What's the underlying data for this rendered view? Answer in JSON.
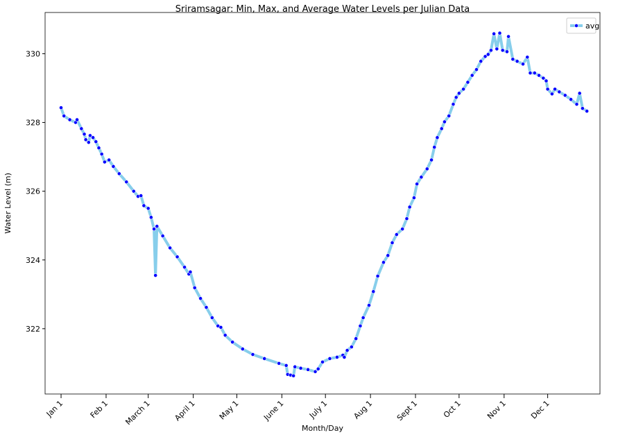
{
  "chart_data": {
    "type": "line",
    "title": "Sriramsagar: Min, Max, and Average Water Levels per Julian Data",
    "x_label": "Month/Day",
    "y_label": "Water Level (m)",
    "x": [
      0,
      2,
      6,
      10,
      11,
      14,
      16,
      17,
      19,
      20,
      22,
      24,
      26,
      28,
      30,
      33,
      36,
      40,
      45,
      50,
      53,
      55,
      57,
      60,
      62,
      64,
      65,
      66,
      70,
      75,
      80,
      85,
      88,
      89,
      92,
      96,
      100,
      104,
      108,
      110,
      113,
      118,
      125,
      132,
      140,
      150,
      155,
      156,
      158,
      160,
      161,
      165,
      170,
      175,
      177,
      180,
      185,
      190,
      194,
      195,
      197,
      200,
      203,
      206,
      208,
      212,
      215,
      218,
      222,
      225,
      228,
      231,
      235,
      238,
      240,
      243,
      245,
      248,
      252,
      255,
      257,
      259,
      262,
      264,
      267,
      270,
      272,
      274,
      277,
      280,
      283,
      286,
      289,
      292,
      294,
      296,
      298,
      300,
      302,
      304,
      307,
      308,
      311,
      314,
      318,
      321,
      323,
      326,
      329,
      332,
      334,
      335,
      338,
      340,
      343,
      347,
      351,
      355,
      357,
      359,
      362
    ],
    "series": [
      {
        "name": "avg",
        "color": "#87ceeb",
        "marker_color": "#0000ff",
        "values": [
          328.43,
          328.19,
          328.08,
          328.0,
          328.08,
          327.82,
          327.66,
          327.5,
          327.42,
          327.62,
          327.56,
          327.44,
          327.26,
          327.08,
          326.85,
          326.91,
          326.72,
          326.51,
          326.27,
          326.0,
          325.85,
          325.87,
          325.58,
          325.5,
          325.24,
          324.9,
          323.55,
          324.98,
          324.7,
          324.35,
          324.09,
          323.79,
          323.59,
          323.65,
          323.19,
          322.88,
          322.62,
          322.32,
          322.08,
          322.04,
          321.81,
          321.61,
          321.41,
          321.25,
          321.13,
          320.99,
          320.93,
          320.67,
          320.65,
          320.63,
          320.89,
          320.85,
          320.81,
          320.75,
          320.83,
          321.03,
          321.13,
          321.17,
          321.23,
          321.17,
          321.37,
          321.47,
          321.71,
          322.08,
          322.32,
          322.68,
          323.08,
          323.53,
          323.93,
          324.13,
          324.5,
          324.74,
          324.9,
          325.2,
          325.54,
          325.81,
          326.21,
          326.41,
          326.65,
          326.91,
          327.28,
          327.56,
          327.82,
          328.02,
          328.19,
          328.53,
          328.73,
          328.85,
          328.97,
          329.17,
          329.37,
          329.54,
          329.78,
          329.92,
          329.98,
          330.1,
          330.58,
          330.14,
          330.6,
          330.1,
          330.06,
          330.5,
          329.84,
          329.78,
          329.7,
          329.9,
          329.44,
          329.44,
          329.37,
          329.29,
          329.21,
          328.97,
          328.83,
          328.97,
          328.89,
          328.79,
          328.67,
          328.53,
          328.85,
          328.41,
          328.33
        ]
      }
    ],
    "xlim": [
      -11,
      371
    ],
    "ylim": [
      320.1,
      331.2
    ],
    "xticks": [
      {
        "value": 0,
        "label": "Jan 1"
      },
      {
        "value": 31,
        "label": "Feb 1"
      },
      {
        "value": 60,
        "label": "March 1"
      },
      {
        "value": 91,
        "label": "April 1"
      },
      {
        "value": 121,
        "label": "May 1"
      },
      {
        "value": 152,
        "label": "June 1"
      },
      {
        "value": 182,
        "label": "July 1"
      },
      {
        "value": 213,
        "label": "Aug 1"
      },
      {
        "value": 244,
        "label": "Sept 1"
      },
      {
        "value": 274,
        "label": "Oct 1"
      },
      {
        "value": 305,
        "label": "Nov 1"
      },
      {
        "value": 335,
        "label": "Dec 1"
      }
    ],
    "yticks": [
      322,
      324,
      326,
      328,
      330
    ],
    "legend": "upper right"
  }
}
